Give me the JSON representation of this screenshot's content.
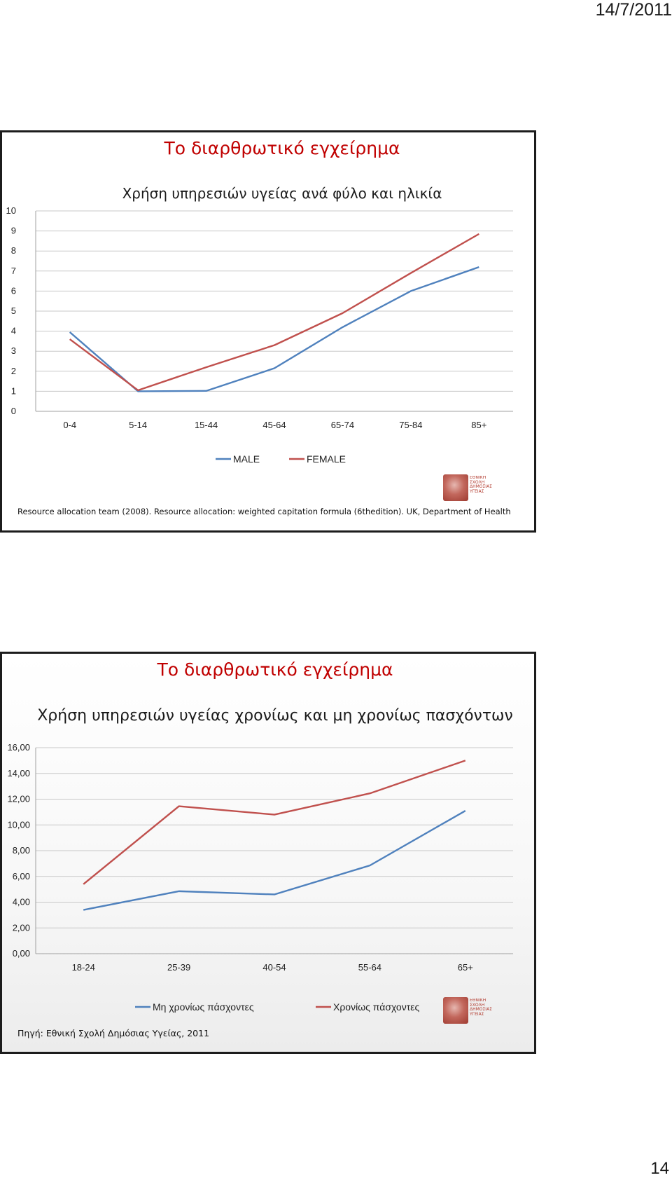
{
  "page": {
    "date": "14/7/2011",
    "page_number": "14"
  },
  "slides": [
    {
      "title": "Το διαρθρωτικό εγχείρημα",
      "source": "Resource allocation team (2008). Resource allocation: weighted capitation formula (6thedition). UK, Department of Health",
      "logo": {
        "text": "ΕΘΝΙΚΗ\nΣΧΟΛΗ\nΔΗΜΟΣΙΑΣ\nΥΓΕΙΑΣ"
      }
    },
    {
      "title": "Το διαρθρωτικό εγχείρημα",
      "source": "Πηγή: Εθνική Σχολή Δημόσιας Υγείας, 2011",
      "logo": {
        "text": "ΕΘΝΙΚΗ\nΣΧΟΛΗ\nΔΗΜΟΣΙΑΣ\nΥΓΕΙΑΣ"
      }
    }
  ],
  "chart_data": [
    {
      "type": "line",
      "title": "Χρήση υπηρεσιών υγείας ανά φύλο και ηλικία",
      "categories": [
        "0-4",
        "5-14",
        "15-44",
        "45-64",
        "65-74",
        "75-84",
        "85+"
      ],
      "y_ticks": [
        "0",
        "1",
        "2",
        "3",
        "4",
        "5",
        "6",
        "7",
        "8",
        "9",
        "10"
      ],
      "ylim": [
        0,
        10
      ],
      "grid": true,
      "legend": "bottom",
      "series": [
        {
          "name": "MALE",
          "color": "#4f81bd",
          "values": [
            3.95,
            1.0,
            1.02,
            2.15,
            4.2,
            6.0,
            7.2
          ]
        },
        {
          "name": "FEMALE",
          "color": "#c0504d",
          "values": [
            3.6,
            1.05,
            2.2,
            3.3,
            4.9,
            6.9,
            8.85
          ]
        }
      ]
    },
    {
      "type": "line",
      "title": "Χρήση υπηρεσιών υγείας χρονίως και μη χρονίως πασχόντων",
      "categories": [
        "18-24",
        "25-39",
        "40-54",
        "55-64",
        "65+"
      ],
      "y_ticks": [
        "0,00",
        "2,00",
        "4,00",
        "6,00",
        "8,00",
        "10,00",
        "12,00",
        "14,00",
        "16,00"
      ],
      "ylim": [
        0,
        16
      ],
      "grid": true,
      "legend": "bottom",
      "series": [
        {
          "name": "Μη χρονίως πάσχοντες",
          "color": "#4f81bd",
          "values": [
            3.4,
            4.85,
            4.6,
            6.85,
            11.1
          ]
        },
        {
          "name": "Χρονίως πάσχοντες",
          "color": "#c0504d",
          "values": [
            5.4,
            11.45,
            10.8,
            12.45,
            15.0
          ]
        }
      ]
    }
  ]
}
